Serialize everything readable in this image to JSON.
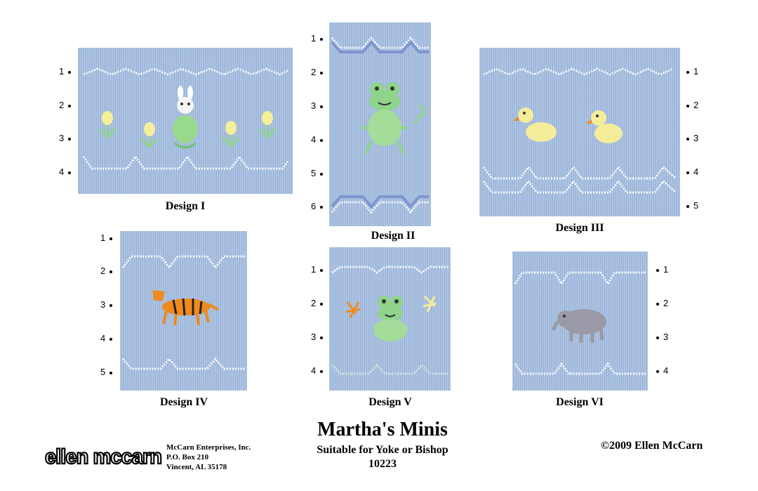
{
  "designs": [
    {
      "caption": "Design I",
      "rows": [
        "1",
        "2",
        "3",
        "4"
      ]
    },
    {
      "caption": "Design II",
      "rows": [
        "1",
        "2",
        "3",
        "4",
        "5",
        "6"
      ]
    },
    {
      "caption": "Design III",
      "rows": [
        "1",
        "2",
        "3",
        "4",
        "5"
      ]
    },
    {
      "caption": "Design IV",
      "rows": [
        "1",
        "2",
        "3",
        "4",
        "5"
      ]
    },
    {
      "caption": "Design V",
      "rows": [
        "1",
        "2",
        "3",
        "4"
      ]
    },
    {
      "caption": "Design VI",
      "rows": [
        "1",
        "2",
        "3",
        "4"
      ]
    }
  ],
  "title": "Martha's Minis",
  "subtitle": "Suitable for Yoke or Bishop",
  "pattern_number": "10223",
  "copyright": "©2009 Ellen McCarn",
  "logo_text": "ellen mccarn",
  "address": {
    "company": "McCarn Enterprises, Inc.",
    "po_box": "P.O. Box 210",
    "city": "Vincent, AL 35178"
  },
  "colors": {
    "fabric": "#9fb9dc",
    "stitch_white": "#ffffff",
    "stitch_blue": "#7f95cf",
    "bunny_green": "#98d98c",
    "frog_green": "#8fd48a",
    "duck_yellow": "#f5ec9a",
    "tiger_orange": "#f08a1c",
    "elephant_gray": "#9a9aa6"
  },
  "motifs": [
    "bunny-with-tulips",
    "frog-with-dragonfly",
    "ducks",
    "tiger",
    "frog-with-dragonflies",
    "elephant"
  ]
}
